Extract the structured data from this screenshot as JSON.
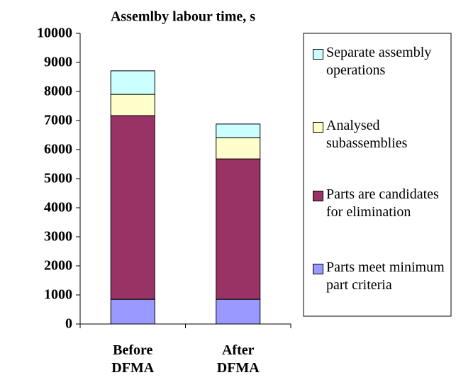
{
  "chart_data": {
    "type": "stacked_bar",
    "title": "Assemlby labour time, s",
    "categories": [
      "Before DFMA",
      "After DFMA"
    ],
    "series": [
      {
        "name": "Parts meet minimum part criteria",
        "color": "#9999ff",
        "values": [
          850,
          850
        ]
      },
      {
        "name": "Parts are candidates for elimination",
        "color": "#993366",
        "values": [
          6320,
          4830
        ]
      },
      {
        "name": "Analysed subassemblies",
        "color": "#ffffcc",
        "values": [
          730,
          730
        ]
      },
      {
        "name": "Separate assembly operations",
        "color": "#ccffff",
        "values": [
          810,
          470
        ]
      }
    ],
    "ylim": [
      0,
      10000
    ],
    "yticks": [
      0,
      1000,
      2000,
      3000,
      4000,
      5000,
      6000,
      7000,
      8000,
      9000,
      10000
    ]
  }
}
